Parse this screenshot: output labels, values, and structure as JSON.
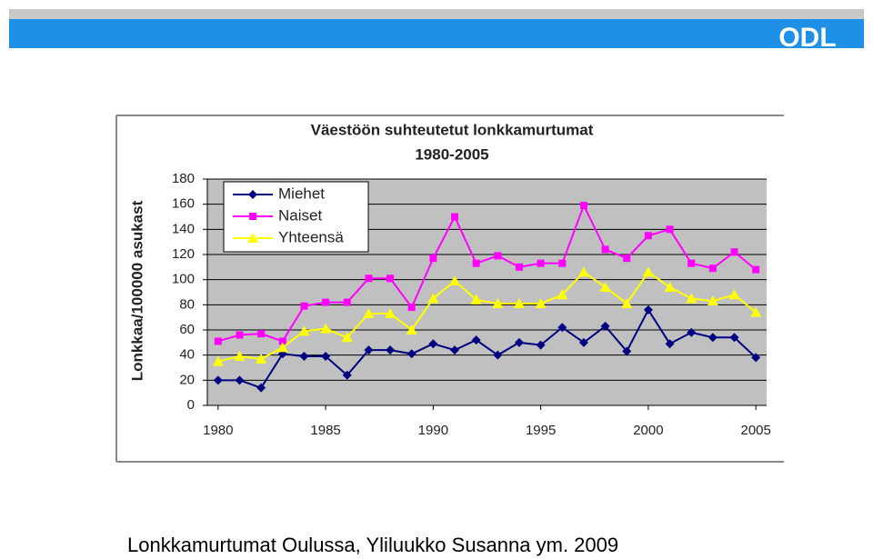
{
  "logo": "ODL",
  "caption": "Lonkkamurtumat Oulussa, Yliluukko Susanna ym. 2009",
  "chart_data": {
    "type": "line",
    "title": "Väestöön suhteutetut lonkkamurtumat",
    "subtitle": "1980-2005",
    "y_label": "Lonkkaa/100000 asukast",
    "x": [
      1980,
      1981,
      1982,
      1983,
      1984,
      1985,
      1986,
      1987,
      1988,
      1989,
      1990,
      1991,
      1992,
      1993,
      1994,
      1995,
      1996,
      1997,
      1998,
      1999,
      2000,
      2001,
      2002,
      2003,
      2004,
      2005
    ],
    "xlim": [
      1979.5,
      2005.5
    ],
    "xticks": [
      1980,
      1985,
      1990,
      1995,
      2000,
      2005
    ],
    "ylim": [
      0,
      180
    ],
    "yticks": [
      0,
      20,
      40,
      60,
      80,
      100,
      120,
      140,
      160,
      180
    ],
    "grid": true,
    "legend": "top-left",
    "series": [
      {
        "name": "Miehet",
        "color": "#000080",
        "marker": "diamond",
        "values": [
          20,
          20,
          14,
          41,
          39,
          39,
          24,
          44,
          44,
          41,
          49,
          44,
          52,
          40,
          50,
          48,
          62,
          50,
          63,
          43,
          76,
          49,
          58,
          54,
          54,
          38
        ]
      },
      {
        "name": "Naiset",
        "color": "#ff00ff",
        "marker": "square",
        "values": [
          51,
          56,
          57,
          51,
          79,
          82,
          82,
          101,
          101,
          78,
          117,
          150,
          113,
          119,
          110,
          113,
          113,
          159,
          124,
          117,
          135,
          140,
          113,
          109,
          122,
          108
        ]
      },
      {
        "name": "Yhteensä",
        "color": "#ffff00",
        "marker": "triangle",
        "values": [
          35,
          39,
          37,
          46,
          59,
          61,
          54,
          73,
          73,
          60,
          85,
          99,
          84,
          81,
          81,
          81,
          88,
          106,
          94,
          81,
          106,
          94,
          85,
          83,
          88,
          74
        ]
      }
    ]
  }
}
